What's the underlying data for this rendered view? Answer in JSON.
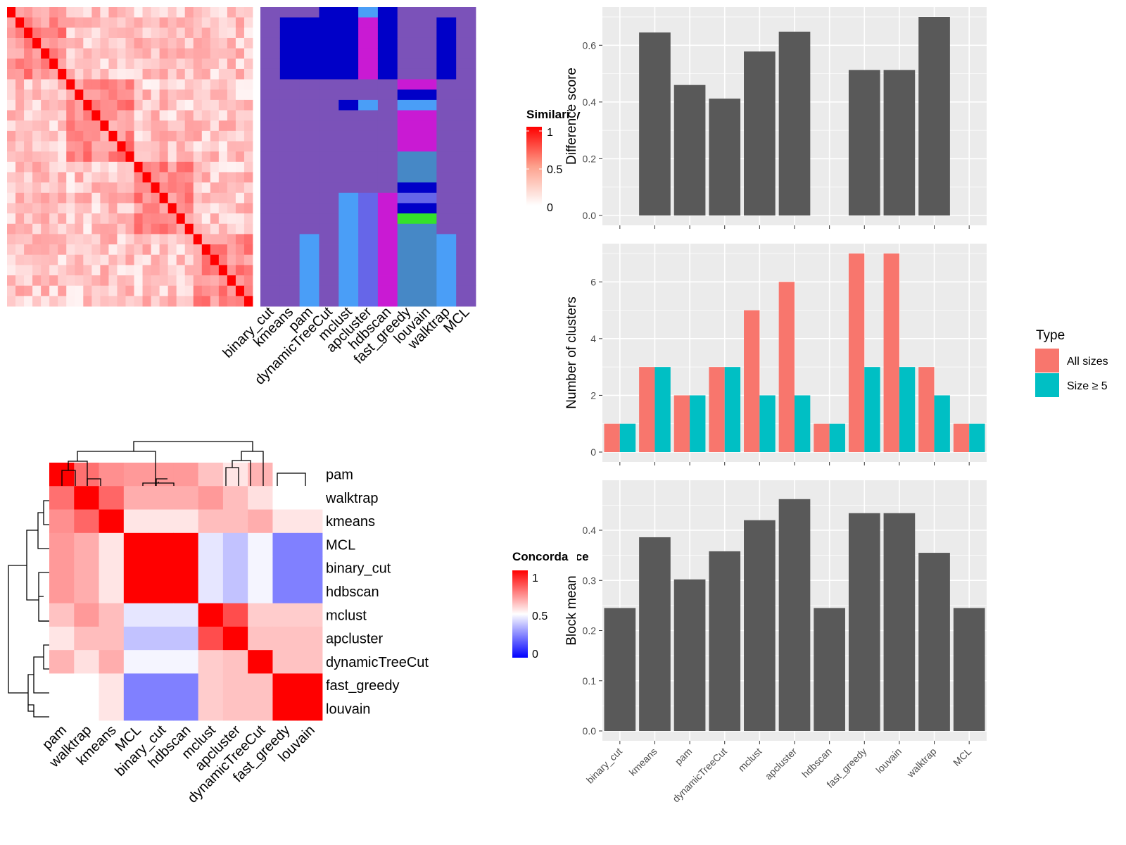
{
  "methods": [
    "binary_cut",
    "kmeans",
    "pam",
    "dynamicTreeCut",
    "mclust",
    "apcluster",
    "hdbscan",
    "fast_greedy",
    "louvain",
    "walktrap",
    "MCL"
  ],
  "similarity_legend": {
    "title": "Similarity",
    "ticks": [
      "1",
      "0.5",
      "0"
    ]
  },
  "concordance_legend": {
    "title": "Concordance",
    "ticks": [
      "1",
      "0.5",
      "0"
    ]
  },
  "colors": {
    "heat_high": "#ff0000",
    "heat_mid": "#ffffff",
    "heat_low": "#0000ff",
    "bar_dark": "#595959",
    "all_sizes": "#f8766d",
    "size5": "#00bfc4",
    "panel_bg": "#ebebeb"
  },
  "cluster_palette": [
    "#7b52b9",
    "#0000c8",
    "#4a9ef7",
    "#c91ad3",
    "#6666e8",
    "#4688c6",
    "#34e22b",
    "#9152ad"
  ],
  "cluster_assignments": [
    [
      0,
      0,
      0,
      0,
      0,
      0,
      0,
      0,
      0,
      0,
      0,
      0,
      0,
      0,
      0,
      0,
      0,
      0,
      0,
      0,
      0,
      0,
      0,
      0,
      0,
      0,
      0,
      0,
      0
    ],
    [
      0,
      1,
      1,
      1,
      1,
      1,
      1,
      0,
      0,
      0,
      0,
      0,
      0,
      0,
      0,
      0,
      0,
      0,
      0,
      0,
      0,
      0,
      0,
      0,
      0,
      0,
      0,
      0,
      0
    ],
    [
      0,
      1,
      1,
      1,
      1,
      1,
      1,
      0,
      0,
      0,
      0,
      0,
      0,
      0,
      0,
      0,
      0,
      0,
      0,
      0,
      0,
      0,
      2,
      2,
      2,
      2,
      2,
      2,
      2
    ],
    [
      1,
      1,
      1,
      1,
      1,
      1,
      1,
      0,
      0,
      0,
      0,
      0,
      0,
      0,
      0,
      0,
      0,
      0,
      0,
      0,
      0,
      0,
      0,
      0,
      0,
      0,
      0,
      0,
      0
    ],
    [
      1,
      1,
      1,
      1,
      1,
      1,
      1,
      0,
      0,
      1,
      0,
      0,
      0,
      0,
      0,
      0,
      0,
      0,
      2,
      2,
      2,
      2,
      2,
      2,
      2,
      2,
      2,
      2,
      2
    ],
    [
      2,
      3,
      3,
      3,
      3,
      3,
      3,
      0,
      0,
      2,
      0,
      0,
      0,
      0,
      0,
      0,
      0,
      0,
      4,
      4,
      4,
      4,
      4,
      4,
      4,
      4,
      4,
      4,
      4
    ],
    [
      1,
      1,
      1,
      1,
      1,
      1,
      1,
      0,
      0,
      0,
      0,
      0,
      0,
      0,
      0,
      0,
      0,
      0,
      3,
      3,
      3,
      3,
      3,
      3,
      3,
      3,
      3,
      3,
      3
    ],
    [
      0,
      0,
      0,
      0,
      0,
      0,
      0,
      3,
      1,
      2,
      3,
      3,
      3,
      3,
      5,
      5,
      5,
      1,
      4,
      1,
      6,
      5,
      5,
      5,
      5,
      5,
      5,
      5,
      5
    ],
    [
      0,
      0,
      0,
      0,
      0,
      0,
      0,
      3,
      1,
      2,
      3,
      3,
      3,
      3,
      5,
      5,
      5,
      1,
      4,
      1,
      6,
      5,
      5,
      5,
      5,
      5,
      5,
      5,
      5
    ],
    [
      0,
      1,
      1,
      1,
      1,
      1,
      1,
      0,
      0,
      0,
      0,
      0,
      0,
      0,
      0,
      0,
      0,
      0,
      0,
      0,
      0,
      0,
      2,
      2,
      2,
      2,
      2,
      2,
      2
    ],
    [
      0,
      0,
      0,
      0,
      0,
      0,
      0,
      0,
      0,
      0,
      0,
      0,
      0,
      0,
      0,
      0,
      0,
      0,
      0,
      0,
      0,
      0,
      0,
      0,
      0,
      0,
      0,
      0,
      0
    ]
  ],
  "concordance": {
    "order": [
      "pam",
      "walktrap",
      "kmeans",
      "MCL",
      "binary_cut",
      "hdbscan",
      "mclust",
      "apcluster",
      "dynamicTreeCut",
      "fast_greedy",
      "louvain"
    ],
    "matrix": [
      [
        1.0,
        0.78,
        0.72,
        0.7,
        0.7,
        0.7,
        0.62,
        0.55,
        0.65,
        0.5,
        0.5
      ],
      [
        0.78,
        1.0,
        0.8,
        0.66,
        0.66,
        0.66,
        0.7,
        0.63,
        0.56,
        0.5,
        0.5
      ],
      [
        0.72,
        0.8,
        1.0,
        0.55,
        0.55,
        0.55,
        0.63,
        0.63,
        0.66,
        0.55,
        0.55
      ],
      [
        0.7,
        0.66,
        0.55,
        1.0,
        1.0,
        1.0,
        0.45,
        0.38,
        0.48,
        0.25,
        0.25
      ],
      [
        0.7,
        0.66,
        0.55,
        1.0,
        1.0,
        1.0,
        0.45,
        0.38,
        0.48,
        0.25,
        0.25
      ],
      [
        0.7,
        0.66,
        0.55,
        1.0,
        1.0,
        1.0,
        0.45,
        0.38,
        0.48,
        0.25,
        0.25
      ],
      [
        0.62,
        0.7,
        0.63,
        0.45,
        0.45,
        0.45,
        1.0,
        0.85,
        0.6,
        0.6,
        0.6
      ],
      [
        0.55,
        0.63,
        0.63,
        0.38,
        0.38,
        0.38,
        0.85,
        1.0,
        0.62,
        0.62,
        0.62
      ],
      [
        0.65,
        0.56,
        0.66,
        0.48,
        0.48,
        0.48,
        0.6,
        0.62,
        1.0,
        0.62,
        0.62
      ],
      [
        0.5,
        0.5,
        0.55,
        0.25,
        0.25,
        0.25,
        0.6,
        0.62,
        0.62,
        1.0,
        1.0
      ],
      [
        0.5,
        0.5,
        0.55,
        0.25,
        0.25,
        0.25,
        0.6,
        0.62,
        0.62,
        1.0,
        1.0
      ]
    ]
  },
  "chart_data": [
    {
      "type": "heatmap",
      "name": "similarity_matrix",
      "title": "",
      "n": 29,
      "legend": "Similarity",
      "range": [
        0,
        1
      ],
      "note": "values approximate; diagonal = 1"
    },
    {
      "type": "heatmap",
      "name": "cluster_labels",
      "title": "",
      "columns": [
        "binary_cut",
        "kmeans",
        "pam",
        "dynamicTreeCut",
        "mclust",
        "apcluster",
        "hdbscan",
        "fast_greedy",
        "louvain",
        "walktrap",
        "MCL"
      ],
      "rows": 29
    },
    {
      "type": "heatmap",
      "name": "concordance",
      "title": "",
      "legend": "Concordance",
      "range": [
        0,
        1
      ]
    },
    {
      "type": "bar",
      "name": "difference_score",
      "title": "",
      "ylabel": "Difference score",
      "xlabel": "",
      "categories": [
        "binary_cut",
        "kmeans",
        "pam",
        "dynamicTreeCut",
        "mclust",
        "apcluster",
        "hdbscan",
        "fast_greedy",
        "louvain",
        "walktrap",
        "MCL"
      ],
      "values": [
        0,
        0.645,
        0.46,
        0.412,
        0.578,
        0.648,
        0,
        0.513,
        0.513,
        0.7,
        0
      ],
      "ylim": [
        0,
        0.7
      ],
      "yticks": [
        "0.0",
        "0.2",
        "0.4",
        "0.6"
      ],
      "grid": true
    },
    {
      "type": "bar",
      "name": "number_of_clusters",
      "title": "",
      "ylabel": "Number of clusters",
      "xlabel": "",
      "categories": [
        "binary_cut",
        "kmeans",
        "pam",
        "dynamicTreeCut",
        "mclust",
        "apcluster",
        "hdbscan",
        "fast_greedy",
        "louvain",
        "walktrap",
        "MCL"
      ],
      "series": [
        {
          "name": "All sizes",
          "values": [
            1,
            3,
            2,
            3,
            5,
            6,
            1,
            7,
            7,
            3,
            1
          ]
        },
        {
          "name": "Size ≥ 5",
          "values": [
            1,
            3,
            2,
            3,
            2,
            2,
            1,
            3,
            3,
            2,
            1
          ]
        }
      ],
      "ylim": [
        0,
        7
      ],
      "yticks": [
        "0",
        "2",
        "4",
        "6"
      ],
      "legend_title": "Type",
      "legend_position": "right",
      "grid": true
    },
    {
      "type": "bar",
      "name": "block_mean",
      "title": "",
      "ylabel": "Block mean",
      "xlabel": "",
      "categories": [
        "binary_cut",
        "kmeans",
        "pam",
        "dynamicTreeCut",
        "mclust",
        "apcluster",
        "hdbscan",
        "fast_greedy",
        "louvain",
        "walktrap",
        "MCL"
      ],
      "values": [
        0.245,
        0.386,
        0.302,
        0.358,
        0.42,
        0.462,
        0.245,
        0.434,
        0.434,
        0.355,
        0.245
      ],
      "ylim": [
        0,
        0.48
      ],
      "yticks": [
        "0.0",
        "0.1",
        "0.2",
        "0.3",
        "0.4"
      ],
      "grid": true
    }
  ]
}
